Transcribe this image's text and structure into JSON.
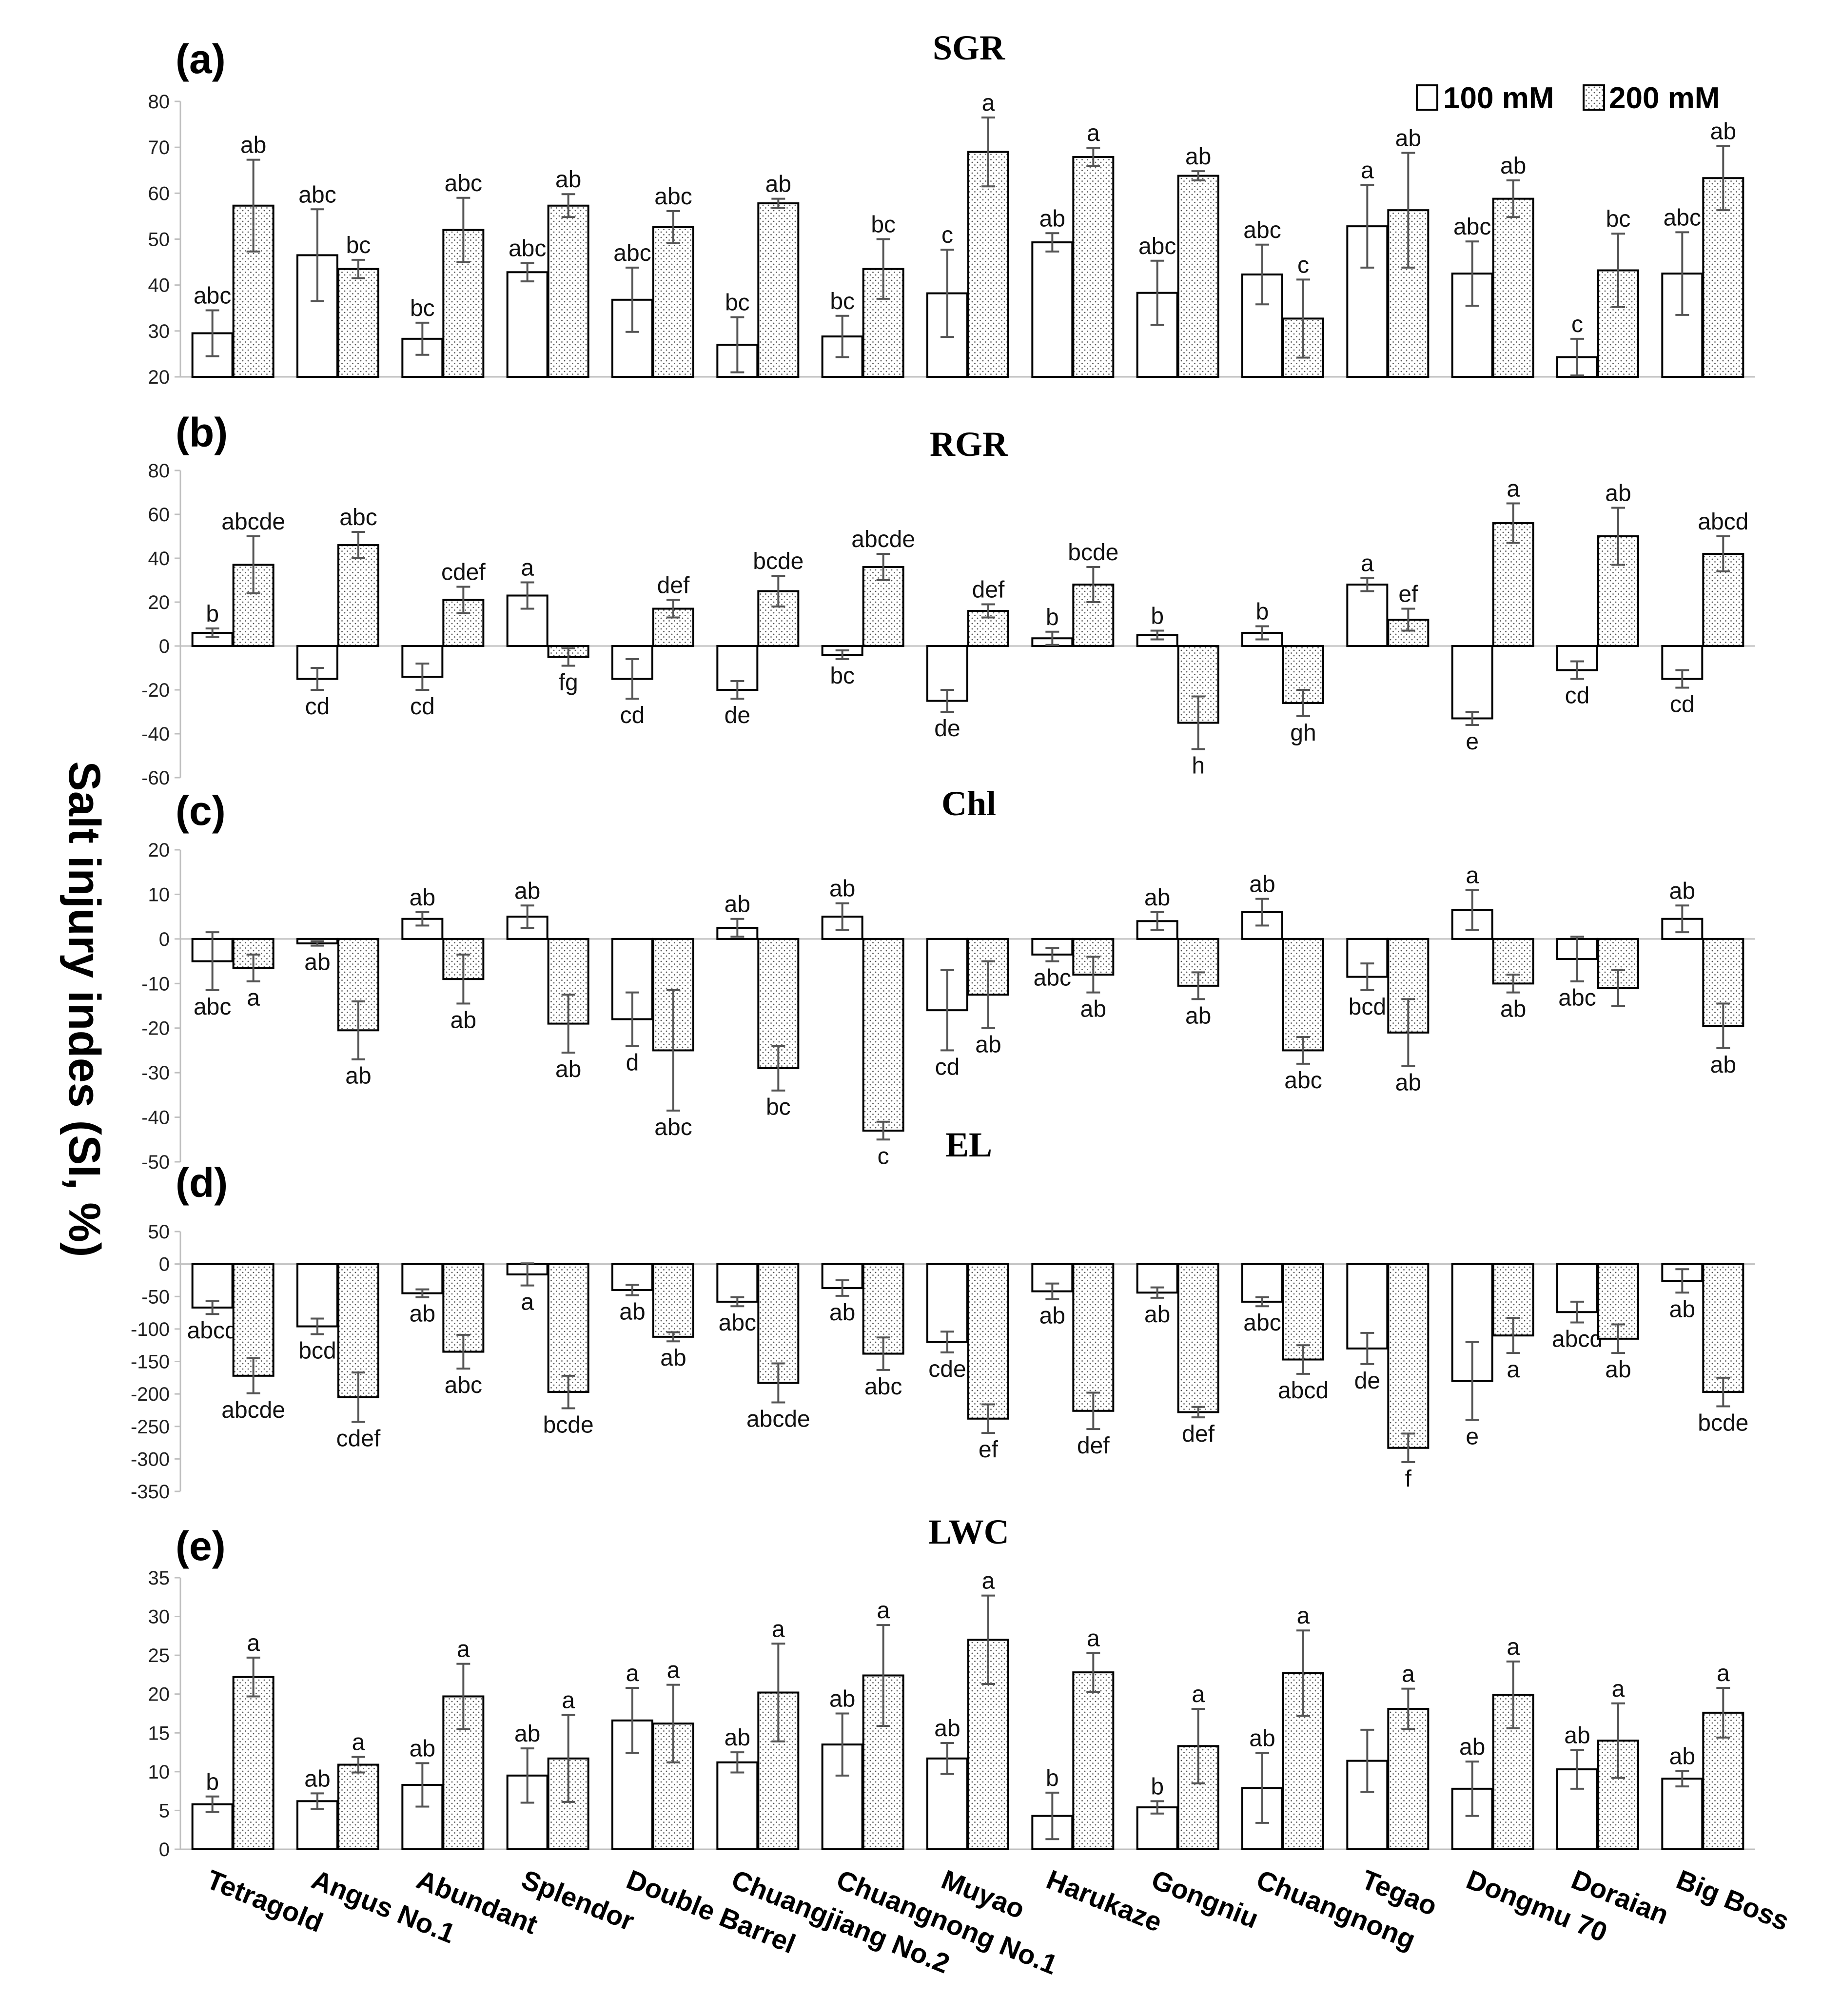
{
  "legend": {
    "s100": "100 mM",
    "s200": "200 mM"
  },
  "y_label": "Salt injury indes (SI, %)",
  "categories": [
    "Tetragold",
    "Angus No.1",
    "Abundant",
    "Splendor",
    "Double Barrel",
    "Chuangjiang No.2",
    "Chuangnong No.1",
    "Muyao",
    "Harukaze",
    "Gongniu",
    "Chuangnong",
    "Tegao",
    "Dongmu 70",
    "Doraian",
    "Big Boss"
  ],
  "colors": {
    "bar_fill": "#ffffff",
    "bar_stroke": "#000000",
    "dot": "#555555",
    "error": "#555555",
    "axis": "#bfbfbf"
  },
  "chart_data": [
    {
      "type": "bar",
      "panel": "(a)",
      "title": "SGR",
      "ylim": [
        20,
        80
      ],
      "yticks": [
        20,
        30,
        40,
        50,
        60,
        70,
        80
      ],
      "series": [
        {
          "name": "100 mM",
          "values": [
            29.5,
            46.5,
            28.3,
            42.8,
            36.8,
            27.0,
            28.8,
            38.2,
            49.3,
            38.3,
            42.3,
            52.8,
            42.5,
            24.3,
            42.5
          ],
          "errors": [
            5,
            10,
            3.5,
            2,
            7,
            6,
            4.5,
            9.5,
            2,
            7,
            6.5,
            9,
            7,
            4,
            9
          ],
          "letters": [
            "abc",
            "abc",
            "bc",
            "abc",
            "abc",
            "bc",
            "bc",
            "c",
            "ab",
            "abc",
            "abc",
            "a",
            "abc",
            "c",
            "abc"
          ]
        },
        {
          "name": "200 mM",
          "values": [
            57.3,
            43.5,
            52.0,
            57.3,
            52.6,
            57.8,
            43.5,
            69.0,
            67.9,
            63.8,
            32.7,
            56.3,
            58.8,
            43.2,
            63.3
          ],
          "errors": [
            10,
            2,
            7,
            2.5,
            3.5,
            1,
            6.5,
            7.5,
            2,
            1,
            8.5,
            12.5,
            4,
            8,
            7
          ],
          "letters": [
            "ab",
            "bc",
            "abc",
            "ab",
            "abc",
            "ab",
            "bc",
            "a",
            "a",
            "ab",
            "c",
            "ab",
            "ab",
            "bc",
            "ab"
          ]
        }
      ]
    },
    {
      "type": "bar",
      "panel": "(b)",
      "title": "RGR",
      "ylim": [
        -60,
        80
      ],
      "yticks": [
        -60,
        -40,
        -20,
        0,
        20,
        40,
        60,
        80
      ],
      "series": [
        {
          "name": "100 mM",
          "values": [
            6,
            -15,
            -14,
            23,
            -15,
            -20,
            -4,
            -25,
            3.5,
            5,
            6,
            28,
            -33,
            -11,
            -15
          ],
          "errors": [
            2,
            5,
            6,
            6,
            9,
            4,
            2,
            5,
            3,
            2,
            3,
            3,
            3,
            4,
            4
          ],
          "letters": [
            "b",
            "cd",
            "cd",
            "a",
            "cd",
            "de",
            "bc",
            "de",
            "b",
            "b",
            "b",
            "a",
            "e",
            "cd",
            "cd"
          ]
        },
        {
          "name": "200 mM",
          "values": [
            37,
            46,
            21,
            -5,
            17,
            25,
            36,
            16,
            28,
            -35,
            -26,
            12,
            56,
            50,
            42
          ],
          "errors": [
            13,
            6,
            6,
            4,
            4,
            7,
            6,
            3,
            8,
            12,
            6,
            5,
            9,
            13,
            8
          ],
          "letters": [
            "abcde",
            "abc",
            "cdef",
            "fg",
            "def",
            "bcde",
            "abcde",
            "def",
            "bcde",
            "h",
            "gh",
            "ef",
            "a",
            "ab",
            "abcd"
          ]
        }
      ]
    },
    {
      "type": "bar",
      "panel": "(c)",
      "title": "Chl",
      "ylim": [
        -50,
        20
      ],
      "yticks": [
        -50,
        -40,
        -30,
        -20,
        -10,
        0,
        10,
        20
      ],
      "series": [
        {
          "name": "100 mM",
          "values": [
            -5,
            -1,
            4.5,
            5,
            -18,
            2.5,
            5,
            -16,
            -3.5,
            4,
            6,
            -8.5,
            6.5,
            -4.5,
            4.5
          ],
          "errors": [
            6.5,
            0.5,
            1.5,
            2.5,
            6,
            2,
            3,
            9,
            1.5,
            2,
            3,
            3,
            4.5,
            5,
            3
          ],
          "letters": [
            "abc",
            "ab",
            "ab",
            "ab",
            "d",
            "ab",
            "ab",
            "cd",
            "abc",
            "ab",
            "ab",
            "bcd",
            "a",
            "abc",
            "ab"
          ]
        },
        {
          "name": "200 mM",
          "values": [
            -6.5,
            -20.5,
            -9,
            -19,
            -25,
            -29,
            -43,
            -12.5,
            -8,
            -10.5,
            -25,
            -21,
            -10,
            -11,
            -19.5
          ],
          "errors": [
            3,
            6.5,
            5.5,
            6.5,
            13.5,
            5,
            2,
            7.5,
            4,
            3,
            3,
            7.5,
            2,
            4,
            5
          ],
          "letters": [
            "a",
            "ab",
            "ab",
            "ab",
            "abc",
            "bc",
            "c",
            "ab",
            "ab",
            "ab",
            "abc",
            "ab",
            "ab",
            "",
            "ab"
          ]
        }
      ]
    },
    {
      "type": "bar",
      "panel": "(d)",
      "title": "EL",
      "ylim": [
        -350,
        50
      ],
      "yticks": [
        -350,
        -300,
        -250,
        -200,
        -150,
        -100,
        -50,
        0,
        50
      ],
      "series": [
        {
          "name": "100 mM",
          "values": [
            -67,
            -96,
            -45,
            -16,
            -40,
            -58,
            -37,
            -120,
            -42,
            -44,
            -58,
            -130,
            -180,
            -74,
            -26
          ],
          "errors": [
            10,
            12,
            6,
            17,
            8,
            7,
            12,
            16,
            12,
            8,
            7,
            24,
            60,
            16,
            18
          ],
          "letters": [
            "abcd",
            "bcd",
            "ab",
            "a",
            "ab",
            "abc",
            "ab",
            "cde",
            "ab",
            "ab",
            "abc",
            "de",
            "e",
            "abcd",
            "ab"
          ]
        },
        {
          "name": "200 mM",
          "values": [
            -172,
            -205,
            -135,
            -197,
            -112,
            -183,
            -138,
            -238,
            -226,
            -228,
            -147,
            -283,
            -110,
            -115,
            -197
          ],
          "errors": [
            27,
            38,
            26,
            25,
            7,
            30,
            25,
            22,
            28,
            8,
            22,
            22,
            27,
            22,
            22
          ],
          "letters": [
            "abcde",
            "cdef",
            "abc",
            "bcde",
            "ab",
            "abcde",
            "abc",
            "ef",
            "def",
            "def",
            "abcd",
            "f",
            "a",
            "ab",
            "bcde"
          ]
        }
      ]
    },
    {
      "type": "bar",
      "panel": "(e)",
      "title": "LWC",
      "ylim": [
        0,
        35
      ],
      "yticks": [
        0,
        5,
        10,
        15,
        20,
        25,
        30,
        35
      ],
      "series": [
        {
          "name": "100 mM",
          "values": [
            5.8,
            6.2,
            8.3,
            9.5,
            16.6,
            11.2,
            13.5,
            11.7,
            4.3,
            5.4,
            7.9,
            11.4,
            7.8,
            10.3,
            9.1
          ],
          "errors": [
            1,
            1,
            2.8,
            3.5,
            4.2,
            1.3,
            4,
            2,
            3,
            0.8,
            4.5,
            4,
            3.5,
            2.5,
            1
          ],
          "letters": [
            "b",
            "ab",
            "ab",
            "ab",
            "a",
            "ab",
            "ab",
            "ab",
            "b",
            "b",
            "ab",
            "",
            "ab",
            "ab",
            "ab"
          ]
        },
        {
          "name": "200 mM",
          "values": [
            22.2,
            10.9,
            19.7,
            11.7,
            16.2,
            20.2,
            22.4,
            27.0,
            22.8,
            13.3,
            22.7,
            18.1,
            19.9,
            14.0,
            17.6
          ],
          "errors": [
            2.5,
            1,
            4.2,
            5.6,
            5,
            6.3,
            6.5,
            5.7,
            2.5,
            4.8,
            5.5,
            2.6,
            4.3,
            4.8,
            3.2
          ],
          "letters": [
            "a",
            "a",
            "a",
            "a",
            "a",
            "a",
            "a",
            "a",
            "a",
            "a",
            "a",
            "a",
            "a",
            "a",
            "a"
          ]
        }
      ]
    }
  ]
}
